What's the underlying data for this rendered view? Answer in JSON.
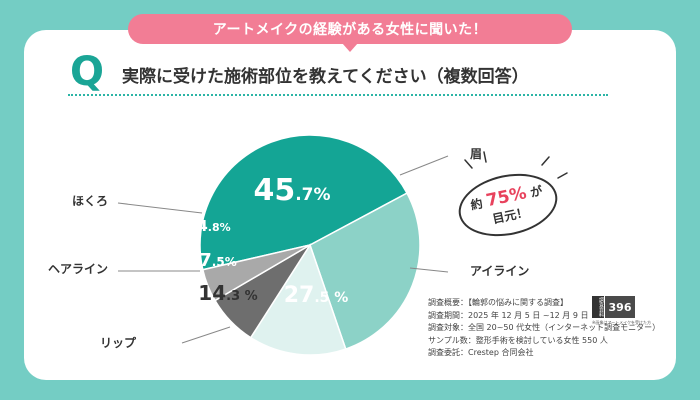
{
  "banner": "アートメイクの経験がある女性に聞いた！",
  "question": {
    "mark": "Q",
    "text": "実際に受けた施術部位を教えてください（複数回答）"
  },
  "chart_data": {
    "type": "pie",
    "title": "実際に受けた施術部位を教えてください（複数回答）",
    "slices": [
      {
        "label": "眉",
        "value": 45.7,
        "int": "45",
        "dec": ".7",
        "unit": "%",
        "color": "#14a595",
        "text_color": "#ffffff"
      },
      {
        "label": "アイライン",
        "value": 27.5,
        "int": "27",
        "dec": ".5",
        "unit": " %",
        "color": "#8cd2c7",
        "text_color": "#ffffff"
      },
      {
        "label": "リップ",
        "value": 14.3,
        "int": "14",
        "dec": ".3",
        "unit": " %",
        "color": "#dff2ef",
        "text_color": "#333333"
      },
      {
        "label": "ヘアライン",
        "value": 7.5,
        "int": "7",
        "dec": ".5",
        "unit": "%",
        "color": "#6e6e6e",
        "text_color": "#ffffff"
      },
      {
        "label": "ほくろ",
        "value": 4.8,
        "int": "4",
        "dec": ".8",
        "unit": "%",
        "color": "#a9a9a9",
        "text_color": "#ffffff"
      }
    ]
  },
  "badge": {
    "line1_prefix": "約",
    "percent": "75%",
    "line1_suffix": "が",
    "line2": "目元！"
  },
  "survey": {
    "lines": [
      "調査概要：【輪郭の悩みに関する調査】",
      "調査期間：2025 年 12 月 5 日 ~12 月 9 日",
      "調査対象：全国 20~50 代女性（インターネット調査モニター）",
      "サンプル数：整形手術を検討している女性 550 人",
      "調査委託：Crestep 合同会社"
    ]
  },
  "report": {
    "tag": "調査資料",
    "number": "396",
    "note": "※画像はアートメイクを受けた方"
  },
  "colors": {
    "background": "#74cdc4",
    "accent_pink": "#f27d95",
    "teal": "#14a595",
    "badge_red": "#e8425d"
  }
}
